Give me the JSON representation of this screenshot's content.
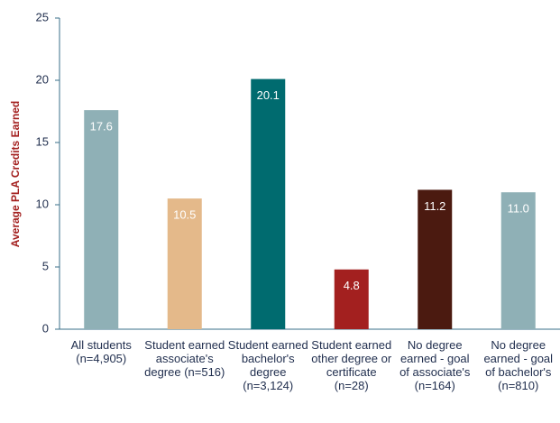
{
  "chart_data": {
    "type": "bar",
    "y_label": "Average PLA Credits Earned",
    "categories": [
      "All students (n=4,905)",
      "Student earned associate's degree (n=516)",
      "Student earned bachelor's degree (n=3,124)",
      "Student earned other degree or certificate (n=28)",
      "No degree earned - goal of associate's (n=164)",
      "No degree earned - goal of bachelor's (n=810)"
    ],
    "values": [
      17.6,
      10.5,
      20.1,
      4.8,
      11.2,
      11.0
    ],
    "value_labels": [
      "17.6",
      "10.5",
      "20.1",
      "4.8",
      "11.2",
      "11.0"
    ],
    "colors": [
      "#8fb0b6",
      "#e4b98a",
      "#006b6f",
      "#a3201f",
      "#4b1a10",
      "#8fb0b6"
    ],
    "ylim": [
      0,
      25
    ],
    "yticks": [
      0,
      5,
      10,
      15,
      20,
      25
    ],
    "grid": false
  }
}
